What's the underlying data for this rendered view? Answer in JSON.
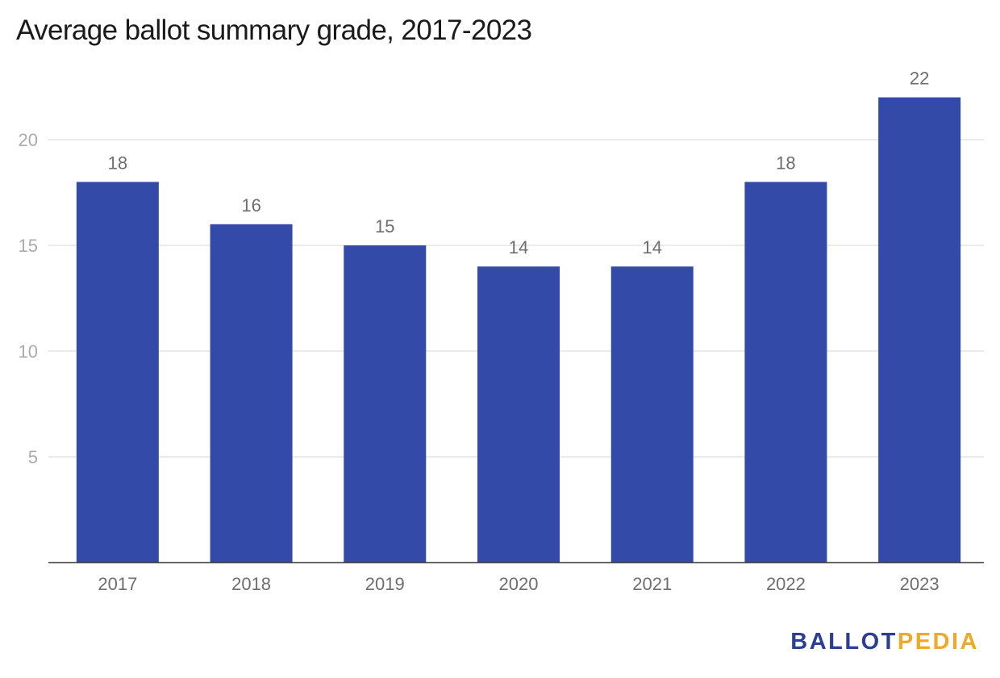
{
  "chart_data": {
    "type": "bar",
    "title": "Average ballot summary grade, 2017-2023",
    "categories": [
      "2017",
      "2018",
      "2019",
      "2020",
      "2021",
      "2022",
      "2023"
    ],
    "values": [
      18,
      16,
      15,
      14,
      14,
      18,
      22
    ],
    "data_labels": [
      "18",
      "16",
      "15",
      "14",
      "14",
      "18",
      "22"
    ],
    "xlabel": "",
    "ylabel": "",
    "ylim": [
      0,
      22
    ],
    "yticks": [
      5,
      10,
      15,
      20
    ],
    "grid": true,
    "legend": "none",
    "bar_color": "#334aa8"
  },
  "logo": {
    "part1": "BALLOT",
    "part2": "PEDIA",
    "color1": "#2b3f95",
    "color2": "#eda92b"
  }
}
